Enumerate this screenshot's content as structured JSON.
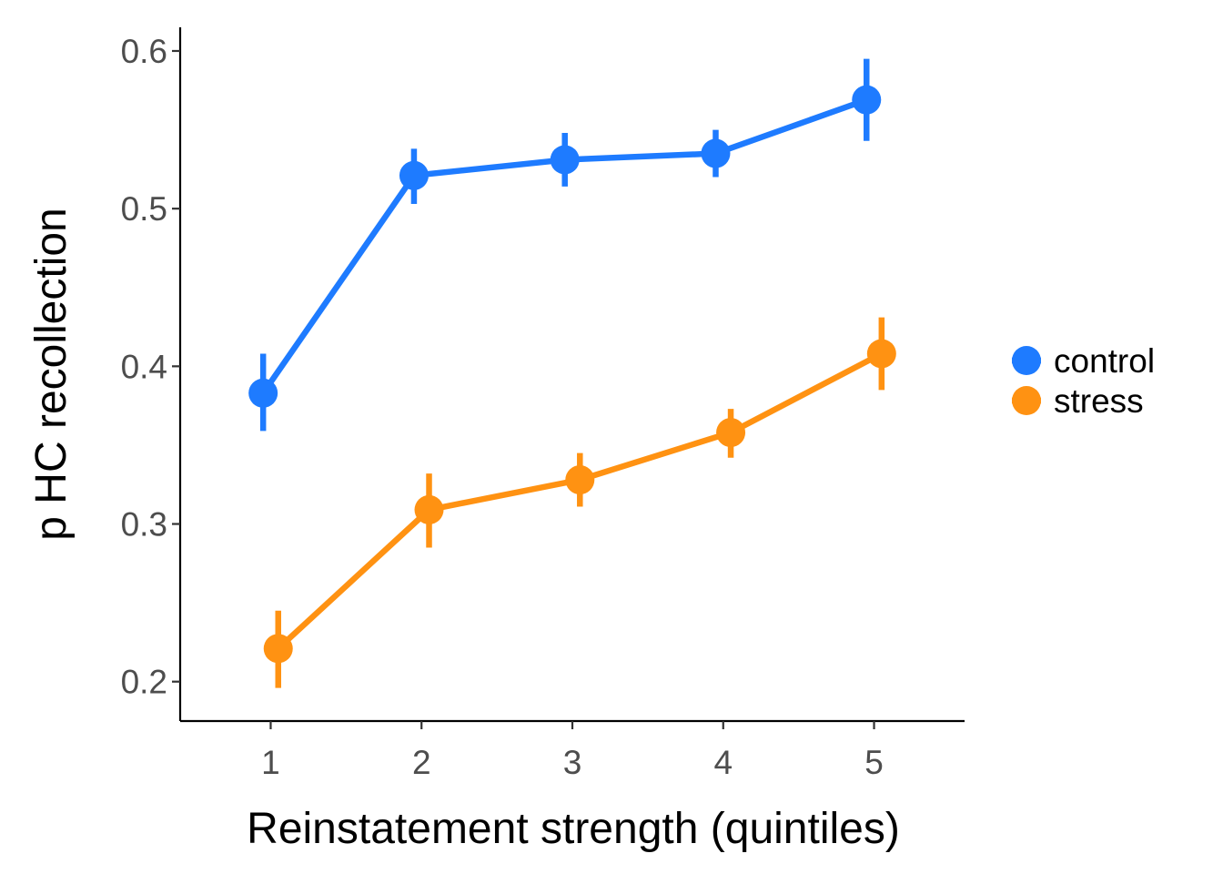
{
  "chart_data": {
    "type": "line",
    "title": "",
    "xlabel": "Reinstatement strength (quintiles)",
    "ylabel": "p HC recollection",
    "x": [
      1,
      2,
      3,
      4,
      5
    ],
    "x_tick_labels": [
      "1",
      "2",
      "3",
      "4",
      "5"
    ],
    "y_ticks": [
      0.2,
      0.3,
      0.4,
      0.5,
      0.6
    ],
    "y_tick_labels": [
      "0.2",
      "0.3",
      "0.4",
      "0.5",
      "0.6"
    ],
    "xlim": [
      0.4,
      5.6
    ],
    "ylim": [
      0.175,
      0.615
    ],
    "grid": false,
    "legend_position": "right",
    "series": [
      {
        "name": "control",
        "color": "#1E7BFF",
        "values": [
          0.383,
          0.521,
          0.531,
          0.535,
          0.569
        ],
        "error_low": [
          0.359,
          0.503,
          0.514,
          0.52,
          0.543
        ],
        "error_high": [
          0.408,
          0.538,
          0.548,
          0.55,
          0.595
        ]
      },
      {
        "name": "stress",
        "color": "#FF9212",
        "values": [
          0.221,
          0.309,
          0.328,
          0.358,
          0.408
        ],
        "error_low": [
          0.196,
          0.285,
          0.311,
          0.342,
          0.385
        ],
        "error_high": [
          0.245,
          0.332,
          0.345,
          0.373,
          0.431
        ]
      }
    ]
  }
}
